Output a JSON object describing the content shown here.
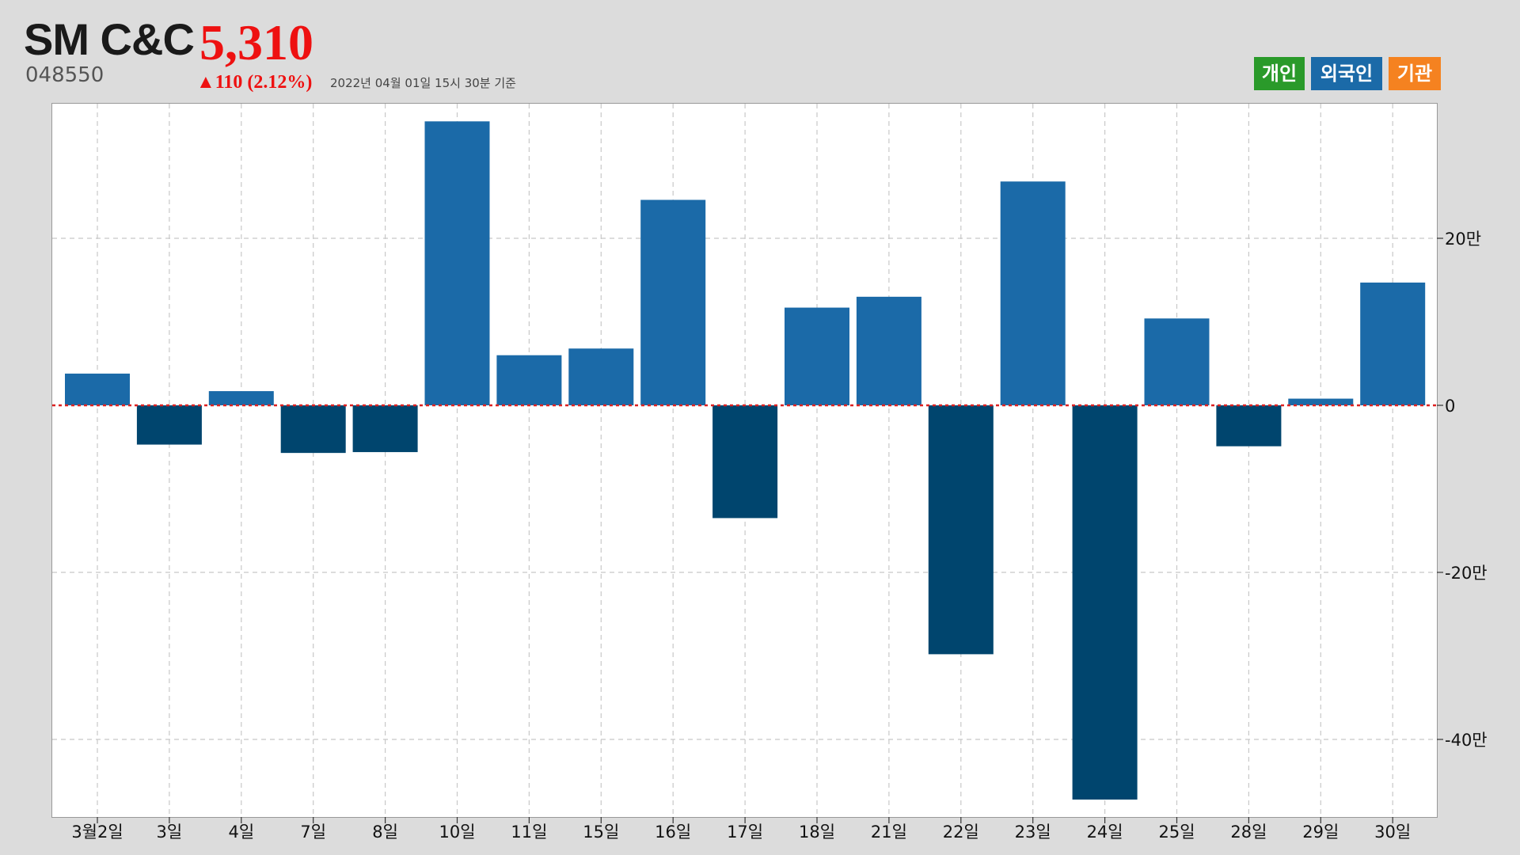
{
  "header": {
    "name": "SM C&C",
    "price": "5,310",
    "code": "048550",
    "change": "▲110 (2.12%)",
    "timestamp": "2022년 04월 01일 15시 30분 기준"
  },
  "legend": [
    {
      "label": "개인",
      "color": "#2a9a2a"
    },
    {
      "label": "외국인",
      "color": "#1b6aa8"
    },
    {
      "label": "기관",
      "color": "#f58220"
    }
  ],
  "colors": {
    "positive": "#1b6aa8",
    "negative": "#00456e",
    "zero_line": "#dd2222",
    "grid": "#c8c8c8"
  },
  "chart_data": {
    "type": "bar",
    "categories": [
      "3월2일",
      "3일",
      "4일",
      "7일",
      "8일",
      "10일",
      "11일",
      "15일",
      "16일",
      "17일",
      "18일",
      "21일",
      "22일",
      "23일",
      "24일",
      "25일",
      "28일",
      "29일",
      "30일"
    ],
    "series": [
      {
        "values": [
          38000,
          -47000,
          17000,
          -57000,
          -56000,
          340000,
          60000,
          68000,
          246000,
          -135000,
          117000,
          130000,
          -298000,
          268000,
          -472000,
          104000,
          -49000,
          8000,
          147000
        ]
      }
    ],
    "y_ticks": [
      200000,
      0,
      -200000,
      -400000
    ],
    "y_tick_labels": [
      "20만",
      "0",
      "-20만",
      "-40만"
    ],
    "ylim": [
      -490000,
      360000
    ],
    "grid": true,
    "y_axis_side": "right"
  }
}
